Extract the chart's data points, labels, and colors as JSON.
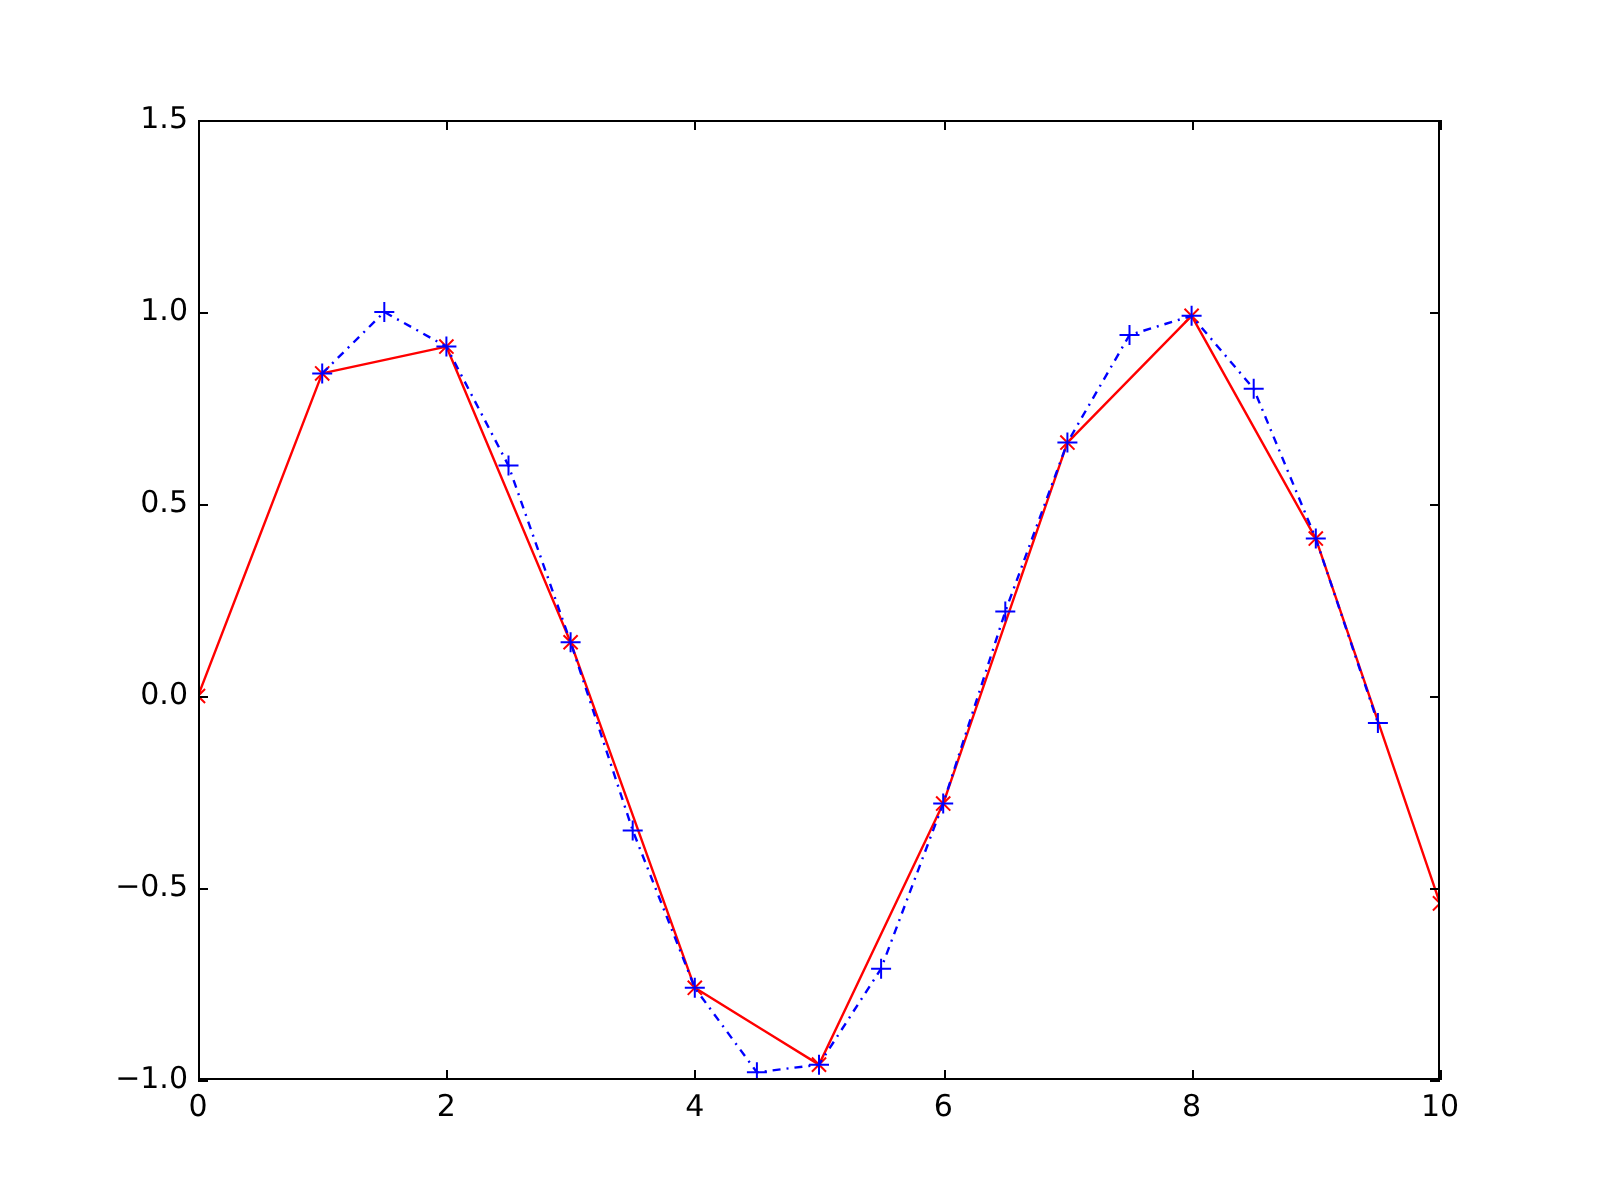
{
  "chart_data": {
    "type": "line",
    "xlim": [
      0,
      10
    ],
    "ylim": [
      -1.0,
      1.5
    ],
    "xticks": [
      0,
      2,
      4,
      6,
      8,
      10
    ],
    "yticks": [
      {
        "value": -1.0,
        "label": "−1.0"
      },
      {
        "value": -0.5,
        "label": "−0.5"
      },
      {
        "value": 0,
        "label": "0.0"
      },
      {
        "value": 0.5,
        "label": "0.5"
      },
      {
        "value": 1.0,
        "label": "1.0"
      },
      {
        "value": 1.5,
        "label": "1.5"
      }
    ],
    "series": [
      {
        "color": "#ff0000",
        "marker": "cross",
        "line_style": "solid",
        "x": [
          0,
          1,
          2,
          3,
          4,
          5,
          6,
          7,
          8,
          9,
          10
        ],
        "values": [
          0,
          0.84,
          0.91,
          0.14,
          -0.76,
          -0.96,
          -0.28,
          0.66,
          0.99,
          0.41,
          -0.54
        ]
      },
      {
        "color": "#0000ff",
        "marker": "plus",
        "line_style": "dashdot",
        "x": [
          1,
          1.5,
          2,
          2.5,
          3,
          3.5,
          4,
          4.5,
          5,
          5.5,
          6,
          6.5,
          7,
          7.5,
          8,
          8.5,
          9,
          9.5
        ],
        "values": [
          0.84,
          1.0,
          0.91,
          0.6,
          0.14,
          -0.35,
          -0.76,
          -0.98,
          -0.96,
          -0.71,
          -0.28,
          0.22,
          0.66,
          0.94,
          0.99,
          0.8,
          0.41,
          -0.07
        ]
      }
    ]
  }
}
